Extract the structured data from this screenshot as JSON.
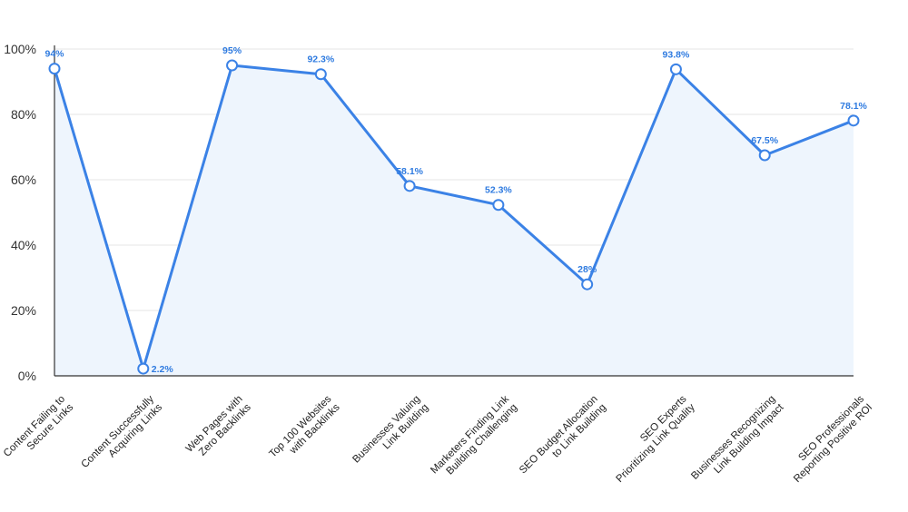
{
  "chart_data": {
    "type": "line",
    "title": "",
    "xlabel": "",
    "ylabel": "",
    "ylim": [
      0,
      100
    ],
    "y_ticks": [
      "0%",
      "20%",
      "40%",
      "60%",
      "80%",
      "100%"
    ],
    "y_tick_values": [
      0,
      20,
      40,
      60,
      80,
      100
    ],
    "grid": true,
    "legend": "none",
    "colors": {
      "line": "#3b82e6",
      "fill": "#eef5fd",
      "label": "#2f7be0"
    },
    "categories": [
      [
        "Content Failing to",
        "Secure Links"
      ],
      [
        "Content Successfully",
        "Acquiring Links"
      ],
      [
        "Web Pages with",
        "Zero Backlinks"
      ],
      [
        "Top 100 Websites",
        "with Backlinks"
      ],
      [
        "Businesses Valuing",
        "Link Building"
      ],
      [
        "Marketers Finding Link",
        "Building Challenging"
      ],
      [
        "SEO Budget Allocation",
        "to Link Building"
      ],
      [
        "SEO Experts",
        "Prioritizing Link Quality"
      ],
      [
        "Businesses Recognizing",
        "Link Building Impact"
      ],
      [
        "SEO Professionals",
        "Reporting Positive ROI"
      ]
    ],
    "series": [
      {
        "values": [
          94,
          2.2,
          95,
          92.3,
          58.1,
          52.3,
          28,
          93.8,
          67.5,
          78.1
        ],
        "labels": [
          "94%",
          "2.2%",
          "95%",
          "92.3%",
          "58.1%",
          "52.3%",
          "28%",
          "93.8%",
          "67.5%",
          "78.1%"
        ]
      }
    ]
  }
}
